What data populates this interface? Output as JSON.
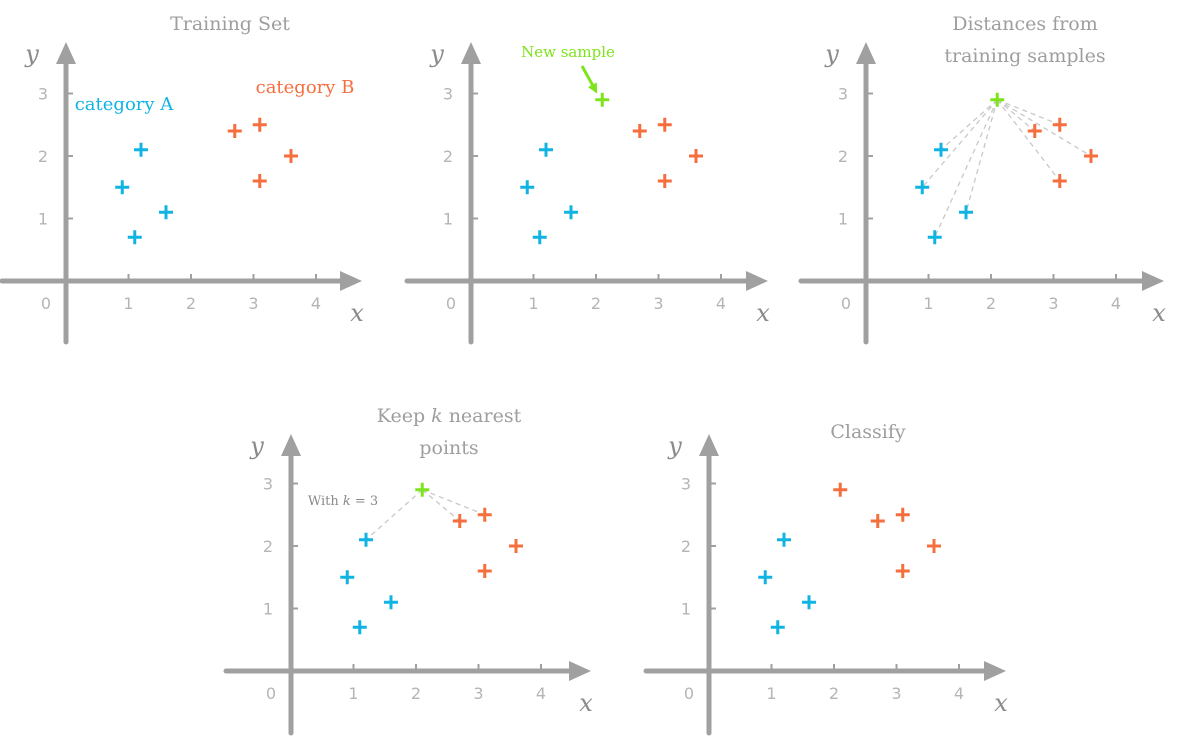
{
  "colors": {
    "category_a": "#10b4e3",
    "category_b": "#f56f3e",
    "new_sample": "#7ee41c",
    "axis": "#a0a0a0",
    "distance_line": "#c8c8c8"
  },
  "axes": {
    "x_label": "x",
    "y_label": "y",
    "x_ticks": [
      "0",
      "1",
      "2",
      "3",
      "4"
    ],
    "y_ticks": [
      "1",
      "2",
      "3"
    ]
  },
  "labels": {
    "category_a": "category A",
    "category_b": "category B",
    "new_sample": "New sample",
    "with_k": "With k = 3"
  },
  "panels": [
    {
      "id": "training-set",
      "title_lines": [
        "Training Set"
      ]
    },
    {
      "id": "new-sample",
      "title_lines": []
    },
    {
      "id": "distances",
      "title_lines": [
        "Distances from",
        "training samples"
      ]
    },
    {
      "id": "keep-k",
      "title_lines": [
        "Keep k nearest",
        "points"
      ]
    },
    {
      "id": "classify",
      "title_lines": [
        "Classify"
      ]
    }
  ],
  "chart_data": {
    "type": "scatter",
    "k": 3,
    "category_a_points": [
      [
        1.2,
        2.1
      ],
      [
        0.9,
        1.5
      ],
      [
        1.6,
        1.1
      ],
      [
        1.1,
        0.7
      ]
    ],
    "category_b_points": [
      [
        2.7,
        2.4
      ],
      [
        3.1,
        2.5
      ],
      [
        3.6,
        2.0
      ],
      [
        3.1,
        1.6
      ]
    ],
    "new_sample": [
      2.1,
      2.9
    ],
    "nearest_neighbors": [
      [
        1.2,
        2.1
      ],
      [
        2.7,
        2.4
      ],
      [
        3.1,
        2.5
      ]
    ],
    "classified_as": "category B"
  }
}
